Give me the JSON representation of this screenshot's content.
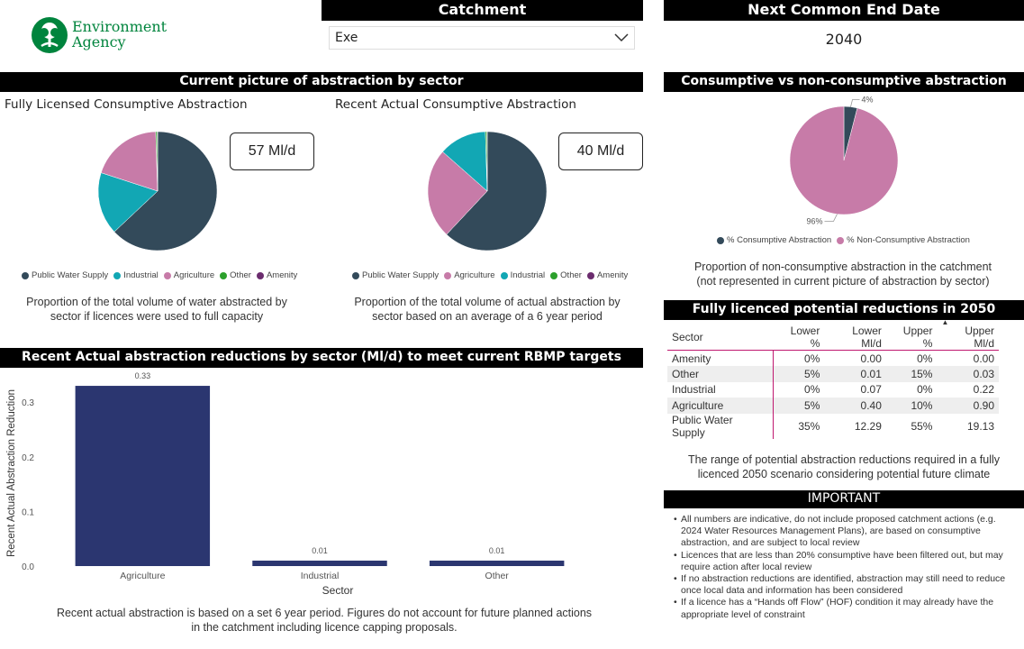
{
  "logo": {
    "line1": "Environment",
    "line2": "Agency"
  },
  "catchment": {
    "title": "Catchment",
    "selected": "Exe"
  },
  "end_date": {
    "title": "Next Common End Date",
    "value": "2040"
  },
  "current_picture": {
    "title": "Current picture of abstraction by sector",
    "licensed": {
      "title": "Fully Licensed Consumptive Abstraction",
      "card": "57 Ml/d",
      "legend": [
        "Public Water Supply",
        "Industrial",
        "Agriculture",
        "Other",
        "Amenity"
      ],
      "caption": "Proportion of the total volume of water abstracted by sector if licences were used to full capacity"
    },
    "actual": {
      "title": "Recent Actual Consumptive Abstraction",
      "card": "40 Ml/d",
      "legend": [
        "Public Water Supply",
        "Agriculture",
        "Industrial",
        "Other",
        "Amenity"
      ],
      "caption": "Proportion of the total volume of actual abstraction by sector based on an average of a 6 year period"
    }
  },
  "consumptive": {
    "title": "Consumptive vs non-consumptive abstraction",
    "label_small": "4%",
    "label_large": "96%",
    "legend": [
      "% Consumptive Abstraction",
      "% Non-Consumptive Abstraction"
    ],
    "caption": "Proportion of non-consumptive abstraction in the catchment (not represented in current picture of abstraction by sector)"
  },
  "reductions_table": {
    "title": "Fully licenced potential reductions in 2050",
    "headers": [
      "Sector",
      "Lower %",
      "Lower Ml/d",
      "Upper %",
      "Upper Ml/d"
    ],
    "rows": [
      [
        "Amenity",
        "0%",
        "0.00",
        "0%",
        "0.00"
      ],
      [
        "Other",
        "5%",
        "0.01",
        "15%",
        "0.03"
      ],
      [
        "Industrial",
        "0%",
        "0.07",
        "0%",
        "0.22"
      ],
      [
        "Agriculture",
        "5%",
        "0.40",
        "10%",
        "0.90"
      ],
      [
        "Public Water Supply",
        "35%",
        "12.29",
        "55%",
        "19.13"
      ]
    ],
    "caption": "The range of potential abstraction reductions required in a fully licenced 2050 scenario considering potential future climate"
  },
  "important": {
    "title": "IMPORTANT",
    "items": [
      "All numbers are indicative, do not include proposed catchment actions (e.g. 2024 Water Resources Management Plans), are based on consumptive abstraction, and are subject to local review",
      "Licences that are less than 20% consumptive have been filtered out, but may require action after local review",
      "If no abstraction reductions are identified, abstraction may still need to reduce once local data and information has been considered",
      "If a licence has a “Hands off Flow” (HOF) condition it may already have the appropriate level of constraint"
    ]
  },
  "bar_section": {
    "title": "Recent Actual abstraction reductions by sector (Ml/d) to meet current RBMP targets",
    "caption": "Recent actual abstraction is based on a set 6 year period. Figures do not account for future planned actions in the catchment including licence capping proposals."
  },
  "colors": {
    "public_water_supply": "#334a5a",
    "industrial": "#12a7b4",
    "agriculture": "#c77ba8",
    "other": "#2ca02c",
    "amenity": "#6b2c6e",
    "bar": "#2b3670",
    "brand_green": "#00843d",
    "accent": "#c0186f"
  },
  "chart_data": [
    {
      "type": "pie",
      "labels": [
        "Public Water Supply",
        "Industrial",
        "Agriculture",
        "Other",
        "Amenity"
      ],
      "values": [
        63.0,
        17.0,
        19.5,
        0.4,
        0.1
      ]
    },
    {
      "type": "pie",
      "labels": [
        "Public Water Supply",
        "Agriculture",
        "Industrial",
        "Other",
        "Amenity"
      ],
      "values": [
        62.0,
        24.5,
        13.0,
        0.4,
        0.1
      ]
    },
    {
      "type": "pie",
      "labels": [
        "% Consumptive Abstraction",
        "% Non-Consumptive Abstraction"
      ],
      "values": [
        4,
        96
      ]
    },
    {
      "type": "bar",
      "categories": [
        "Agriculture",
        "Industrial",
        "Other"
      ],
      "values": [
        0.33,
        0.01,
        0.01
      ],
      "data_labels": [
        "0.33",
        "0.01",
        "0.01"
      ],
      "xlabel": "Sector",
      "ylabel": "Recent Actual Abstraction Reduction",
      "yticks": [
        "0.0",
        "0.1",
        "0.2",
        "0.3"
      ],
      "ylim": [
        0,
        0.34
      ]
    }
  ]
}
